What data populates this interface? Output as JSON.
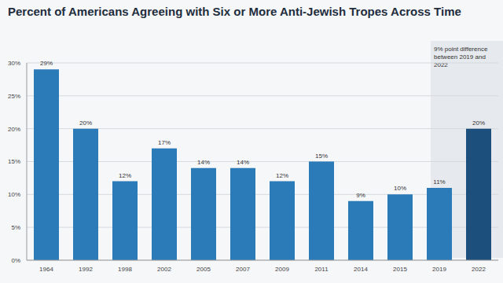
{
  "chart_data": {
    "type": "bar",
    "title": "Percent of Americans Agreeing with Six or More Anti-Jewish Tropes Across Time",
    "categories": [
      "1964",
      "1992",
      "1998",
      "2002",
      "2005",
      "2007",
      "2009",
      "2011",
      "2014",
      "2015",
      "2019",
      "2022"
    ],
    "values": [
      29,
      20,
      12,
      17,
      14,
      14,
      12,
      15,
      9,
      10,
      11,
      20
    ],
    "value_labels": [
      "29%",
      "20%",
      "12%",
      "17%",
      "14%",
      "14%",
      "12%",
      "15%",
      "9%",
      "10%",
      "11%",
      "20%"
    ],
    "colors": [
      "#2b7bb9",
      "#2b7bb9",
      "#2b7bb9",
      "#2b7bb9",
      "#2b7bb9",
      "#2b7bb9",
      "#2b7bb9",
      "#2b7bb9",
      "#2b7bb9",
      "#2b7bb9",
      "#2b7bb9",
      "#1d4f7c"
    ],
    "annotation": "9% point difference between 2019 and 2022",
    "ylim": [
      0,
      30
    ],
    "yticks": [
      {
        "value": 0,
        "label": "0%"
      },
      {
        "value": 5,
        "label": "5%"
      },
      {
        "value": 10,
        "label": "10%"
      },
      {
        "value": 15,
        "label": "15%"
      },
      {
        "value": 20,
        "label": "20%"
      },
      {
        "value": 25,
        "label": "25%"
      },
      {
        "value": 30,
        "label": "30%"
      }
    ],
    "grid": true,
    "data_labels": true
  }
}
